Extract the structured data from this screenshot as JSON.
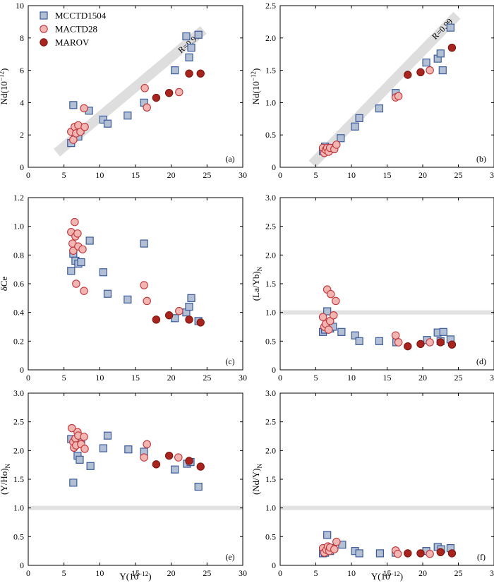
{
  "figure": {
    "legend_position": "top-left of panel (a)"
  },
  "colors": {
    "mcctd1504_fill": "#b3bfd3",
    "mcctd1504_stroke": "#3a5a9c",
    "mactd28_fill": "#f2b6b2",
    "mactd28_stroke": "#c2333a",
    "marov_fill": "#a8241e",
    "marov_stroke": "#7a1410",
    "trend_band": "#dedede",
    "reference_line": "#e2e2e2"
  },
  "legend": [
    "MCCTD1504",
    "MACTD28",
    "MAROV"
  ],
  "chart_data": [
    {
      "id": "a",
      "type": "scatter",
      "label": "(a)",
      "xlabel": "",
      "ylabel": "Nd(10",
      "ylabel_sup": "−12",
      "ylabel_end": ")",
      "xlim": [
        0,
        30
      ],
      "ylim": [
        0,
        10
      ],
      "xticks": [
        0,
        5,
        10,
        15,
        20,
        25,
        30
      ],
      "yticks": [
        0,
        2,
        4,
        6,
        8,
        10
      ],
      "ytick_labels": [
        "0",
        "2",
        "4",
        "6",
        "8",
        "10"
      ],
      "trend": {
        "from": [
          4,
          0.9
        ],
        "to": [
          24.5,
          8.5
        ],
        "label": "R=0.91"
      },
      "series": [
        {
          "name": "MCCTD1504",
          "marker": "square",
          "points": [
            [
              6.0,
              1.5
            ],
            [
              6.3,
              3.85
            ],
            [
              6.6,
              2.1
            ],
            [
              7.0,
              1.9
            ],
            [
              7.3,
              2.3
            ],
            [
              8.5,
              3.5
            ],
            [
              10.5,
              2.95
            ],
            [
              11.1,
              2.7
            ],
            [
              13.9,
              3.2
            ],
            [
              16.2,
              4.0
            ],
            [
              20.5,
              6.0
            ],
            [
              22.1,
              8.1
            ],
            [
              22.5,
              6.8
            ],
            [
              22.8,
              7.4
            ],
            [
              23.8,
              8.2
            ]
          ]
        },
        {
          "name": "MACTD28",
          "marker": "circle",
          "points": [
            [
              6.0,
              2.2
            ],
            [
              6.3,
              1.7
            ],
            [
              6.5,
              2.5
            ],
            [
              6.7,
              2.1
            ],
            [
              7.0,
              2.6
            ],
            [
              7.3,
              2.2
            ],
            [
              7.8,
              3.65
            ],
            [
              7.9,
              2.5
            ],
            [
              16.3,
              4.9
            ],
            [
              16.6,
              3.7
            ],
            [
              21.1,
              4.65
            ]
          ]
        },
        {
          "name": "MAROV",
          "marker": "filled-circle",
          "points": [
            [
              17.9,
              4.3
            ],
            [
              19.7,
              4.6
            ],
            [
              22.5,
              5.8
            ],
            [
              24.1,
              5.8
            ]
          ]
        }
      ]
    },
    {
      "id": "b",
      "type": "scatter",
      "label": "(b)",
      "xlabel": "",
      "ylabel": "Nd(10",
      "ylabel_sup": "−12",
      "ylabel_end": ")",
      "xlim": [
        0,
        30
      ],
      "ylim": [
        0,
        2.5
      ],
      "xticks": [
        0,
        5,
        10,
        15,
        20,
        25,
        30
      ],
      "yticks": [
        0,
        0.5,
        1.0,
        1.5,
        2.0,
        2.5
      ],
      "ytick_labels": [
        "0",
        "0.5",
        "1.0",
        "1.5",
        "2.0",
        "2.5"
      ],
      "trend": {
        "from": [
          4.5,
          0.05
        ],
        "to": [
          24.8,
          2.35
        ],
        "label": "R=0.99"
      },
      "series": [
        {
          "name": "MCCTD1504",
          "marker": "square",
          "points": [
            [
              6.0,
              0.25
            ],
            [
              6.3,
              0.32
            ],
            [
              6.6,
              0.28
            ],
            [
              7.0,
              0.3
            ],
            [
              7.3,
              0.28
            ],
            [
              8.5,
              0.45
            ],
            [
              10.5,
              0.63
            ],
            [
              11.1,
              0.76
            ],
            [
              13.9,
              0.91
            ],
            [
              16.2,
              1.15
            ],
            [
              20.5,
              1.62
            ],
            [
              22.1,
              1.68
            ],
            [
              22.5,
              1.76
            ],
            [
              22.8,
              1.5
            ],
            [
              23.9,
              2.16
            ]
          ]
        },
        {
          "name": "MACTD28",
          "marker": "circle",
          "points": [
            [
              6.0,
              0.3
            ],
            [
              6.2,
              0.22
            ],
            [
              6.4,
              0.27
            ],
            [
              6.6,
              0.3
            ],
            [
              6.8,
              0.24
            ],
            [
              7.0,
              0.3
            ],
            [
              7.6,
              0.28
            ],
            [
              7.9,
              0.35
            ],
            [
              16.2,
              1.08
            ],
            [
              16.6,
              1.1
            ],
            [
              21.0,
              1.5
            ]
          ]
        },
        {
          "name": "MAROV",
          "marker": "filled-circle",
          "points": [
            [
              17.9,
              1.43
            ],
            [
              19.7,
              1.47
            ],
            [
              24.1,
              1.85
            ]
          ]
        }
      ]
    },
    {
      "id": "c",
      "type": "scatter",
      "label": "(c)",
      "xlabel": "",
      "ylabel": "δCe",
      "ylabel_sup": "",
      "ylabel_end": "",
      "xlim": [
        0,
        30
      ],
      "ylim": [
        0,
        1.2
      ],
      "xticks": [
        0,
        5,
        10,
        15,
        20,
        25,
        30
      ],
      "yticks": [
        0,
        0.2,
        0.4,
        0.6,
        0.8,
        1.0,
        1.2
      ],
      "ytick_labels": [
        "0",
        "0.2",
        "0.4",
        "0.6",
        "0.8",
        "1.0",
        "1.2"
      ],
      "series": [
        {
          "name": "MCCTD1504",
          "marker": "square",
          "points": [
            [
              6.0,
              0.69
            ],
            [
              6.3,
              0.81
            ],
            [
              6.6,
              0.76
            ],
            [
              7.0,
              0.74
            ],
            [
              7.4,
              0.75
            ],
            [
              8.6,
              0.9
            ],
            [
              10.5,
              0.68
            ],
            [
              11.1,
              0.53
            ],
            [
              13.9,
              0.49
            ],
            [
              16.2,
              0.88
            ],
            [
              20.5,
              0.36
            ],
            [
              22.1,
              0.4
            ],
            [
              22.5,
              0.44
            ],
            [
              22.8,
              0.5
            ],
            [
              23.8,
              0.34
            ]
          ]
        },
        {
          "name": "MACTD28",
          "marker": "circle",
          "points": [
            [
              6.0,
              0.96
            ],
            [
              6.2,
              0.88
            ],
            [
              6.3,
              0.83
            ],
            [
              6.5,
              1.03
            ],
            [
              6.6,
              0.93
            ],
            [
              6.7,
              0.6
            ],
            [
              6.9,
              0.95
            ],
            [
              7.0,
              0.86
            ],
            [
              7.6,
              0.84
            ],
            [
              7.8,
              0.55
            ],
            [
              16.2,
              0.59
            ],
            [
              16.6,
              0.48
            ],
            [
              21.1,
              0.41
            ]
          ]
        },
        {
          "name": "MAROV",
          "marker": "filled-circle",
          "points": [
            [
              17.9,
              0.35
            ],
            [
              19.7,
              0.38
            ],
            [
              22.5,
              0.35
            ],
            [
              24.1,
              0.33
            ]
          ]
        }
      ]
    },
    {
      "id": "d",
      "type": "scatter",
      "label": "(d)",
      "xlabel": "",
      "ylabel": "(La/Yb)",
      "ylabel_sup": "N",
      "ylabel_end": "",
      "xlim": [
        0,
        30
      ],
      "ylim": [
        0,
        3.0
      ],
      "xticks": [
        0,
        5,
        10,
        15,
        20,
        25,
        30
      ],
      "yticks": [
        0,
        0.5,
        1.0,
        1.5,
        2.0,
        2.5,
        3.0
      ],
      "ytick_labels": [
        "0",
        "0.5",
        "1.0",
        "1.5",
        "2.0",
        "2.5",
        "3.0"
      ],
      "reference_y": 1.0,
      "series": [
        {
          "name": "MCCTD1504",
          "marker": "square",
          "points": [
            [
              6.0,
              0.66
            ],
            [
              6.3,
              0.7
            ],
            [
              6.6,
              1.02
            ],
            [
              7.0,
              0.72
            ],
            [
              7.4,
              0.75
            ],
            [
              8.6,
              0.66
            ],
            [
              10.5,
              0.6
            ],
            [
              11.1,
              0.5
            ],
            [
              13.9,
              0.5
            ],
            [
              16.3,
              0.48
            ],
            [
              20.6,
              0.52
            ],
            [
              22.1,
              0.65
            ],
            [
              22.5,
              0.5
            ],
            [
              22.9,
              0.66
            ],
            [
              23.9,
              0.53
            ]
          ]
        },
        {
          "name": "MACTD28",
          "marker": "circle",
          "points": [
            [
              6.0,
              0.92
            ],
            [
              6.2,
              0.75
            ],
            [
              6.4,
              0.8
            ],
            [
              6.6,
              1.4
            ],
            [
              6.8,
              0.7
            ],
            [
              7.0,
              0.85
            ],
            [
              7.1,
              1.32
            ],
            [
              7.5,
              0.95
            ],
            [
              7.8,
              1.2
            ],
            [
              16.2,
              0.6
            ],
            [
              16.6,
              0.48
            ],
            [
              21.0,
              0.48
            ]
          ]
        },
        {
          "name": "MAROV",
          "marker": "filled-circle",
          "points": [
            [
              17.9,
              0.41
            ],
            [
              19.7,
              0.45
            ],
            [
              22.5,
              0.48
            ],
            [
              24.1,
              0.44
            ]
          ]
        }
      ]
    },
    {
      "id": "e",
      "type": "scatter",
      "label": "(e)",
      "xlabel": "Y(10",
      "xlabel_sup": "−12",
      "xlabel_end": ")",
      "ylabel": "(Y/Ho)",
      "ylabel_sup": "N",
      "ylabel_end": "",
      "xlim": [
        0,
        30
      ],
      "ylim": [
        0,
        3.0
      ],
      "xticks": [
        0,
        5,
        10,
        15,
        20,
        25,
        30
      ],
      "yticks": [
        0,
        0.5,
        1.0,
        1.5,
        2.0,
        2.5,
        3.0
      ],
      "ytick_labels": [
        "0",
        "0.5",
        "1.0",
        "1.5",
        "2.0",
        "2.5",
        "3.0"
      ],
      "reference_y": 1.0,
      "series": [
        {
          "name": "MCCTD1504",
          "marker": "square",
          "points": [
            [
              6.0,
              2.2
            ],
            [
              6.3,
              1.44
            ],
            [
              6.6,
              2.13
            ],
            [
              6.9,
              1.91
            ],
            [
              7.2,
              1.84
            ],
            [
              7.4,
              2.15
            ],
            [
              8.7,
              1.73
            ],
            [
              10.5,
              2.04
            ],
            [
              11.1,
              2.26
            ],
            [
              14.0,
              2.02
            ],
            [
              16.2,
              1.98
            ],
            [
              20.5,
              1.67
            ],
            [
              22.2,
              1.77
            ],
            [
              22.7,
              1.8
            ],
            [
              23.8,
              1.37
            ]
          ]
        },
        {
          "name": "MACTD28",
          "marker": "circle",
          "points": [
            [
              6.1,
              2.39
            ],
            [
              6.3,
              2.15
            ],
            [
              6.4,
              2.05
            ],
            [
              6.6,
              2.21
            ],
            [
              6.7,
              2.09
            ],
            [
              6.9,
              2.32
            ],
            [
              7.0,
              2.26
            ],
            [
              7.4,
              2.11
            ],
            [
              7.8,
              2.24
            ],
            [
              7.9,
              2.03
            ],
            [
              16.2,
              1.88
            ],
            [
              16.6,
              2.11
            ],
            [
              21.0,
              1.88
            ]
          ]
        },
        {
          "name": "MAROV",
          "marker": "filled-circle",
          "points": [
            [
              17.9,
              1.76
            ],
            [
              19.7,
              1.91
            ],
            [
              22.5,
              1.82
            ],
            [
              24.1,
              1.72
            ]
          ]
        }
      ]
    },
    {
      "id": "f",
      "type": "scatter",
      "label": "(f)",
      "xlabel": "Y(10",
      "xlabel_sup": "−12",
      "xlabel_end": ")",
      "ylabel": "(Nd/Y)",
      "ylabel_sup": "N",
      "ylabel_end": "",
      "xlim": [
        0,
        30
      ],
      "ylim": [
        0,
        3.0
      ],
      "xticks": [
        0,
        5,
        10,
        15,
        20,
        25,
        30
      ],
      "yticks": [
        0,
        0.5,
        1.0,
        1.5,
        2.0,
        2.5,
        3.0
      ],
      "ytick_labels": [
        "0",
        "0.5",
        "1.0",
        "1.5",
        "2.0",
        "2.5",
        "3.0"
      ],
      "reference_y": 1.0,
      "series": [
        {
          "name": "MCCTD1504",
          "marker": "square",
          "points": [
            [
              6.0,
              0.21
            ],
            [
              6.3,
              0.22
            ],
            [
              6.6,
              0.53
            ],
            [
              7.0,
              0.25
            ],
            [
              7.4,
              0.3
            ],
            [
              8.7,
              0.36
            ],
            [
              10.5,
              0.25
            ],
            [
              11.1,
              0.21
            ],
            [
              14.0,
              0.21
            ],
            [
              16.2,
              0.22
            ],
            [
              20.5,
              0.25
            ],
            [
              22.1,
              0.32
            ],
            [
              22.6,
              0.28
            ],
            [
              23.9,
              0.3
            ]
          ]
        },
        {
          "name": "MACTD28",
          "marker": "circle",
          "points": [
            [
              6.0,
              0.3
            ],
            [
              6.2,
              0.22
            ],
            [
              6.5,
              0.27
            ],
            [
              6.7,
              0.33
            ],
            [
              6.9,
              0.25
            ],
            [
              7.0,
              0.31
            ],
            [
              7.6,
              0.28
            ],
            [
              7.9,
              0.41
            ],
            [
              16.2,
              0.26
            ],
            [
              16.5,
              0.2
            ],
            [
              21.0,
              0.2
            ]
          ]
        },
        {
          "name": "MAROV",
          "marker": "filled-circle",
          "points": [
            [
              17.9,
              0.21
            ],
            [
              19.7,
              0.21
            ],
            [
              22.5,
              0.23
            ],
            [
              24.1,
              0.21
            ]
          ]
        }
      ]
    }
  ]
}
